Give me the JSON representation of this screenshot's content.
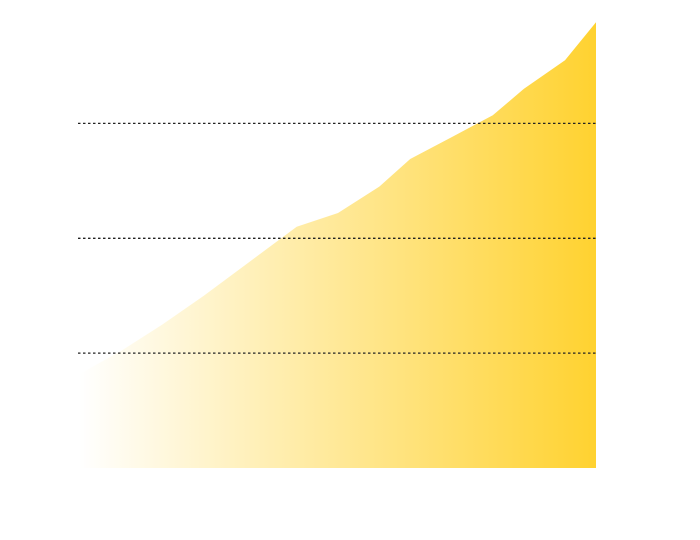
{
  "chart_data": {
    "type": "area",
    "title": "",
    "xlabel": "",
    "ylabel": "",
    "grid": true,
    "grid_style": "dotted horizontal",
    "gridlines_y": [
      1,
      2,
      3
    ],
    "ylim": [
      0,
      3.9
    ],
    "xlim": [
      0,
      1
    ],
    "x": [
      0,
      0.08,
      0.16,
      0.24,
      0.33,
      0.42,
      0.5,
      0.58,
      0.64,
      0.72,
      0.8,
      0.86,
      0.94,
      1
    ],
    "values": [
      0.82,
      1.02,
      1.25,
      1.5,
      1.8,
      2.1,
      2.22,
      2.45,
      2.69,
      2.88,
      3.07,
      3.3,
      3.55,
      3.88
    ],
    "fill_gradient": [
      "#ffffff",
      "#ffd230"
    ],
    "grid_color": "#222222"
  }
}
